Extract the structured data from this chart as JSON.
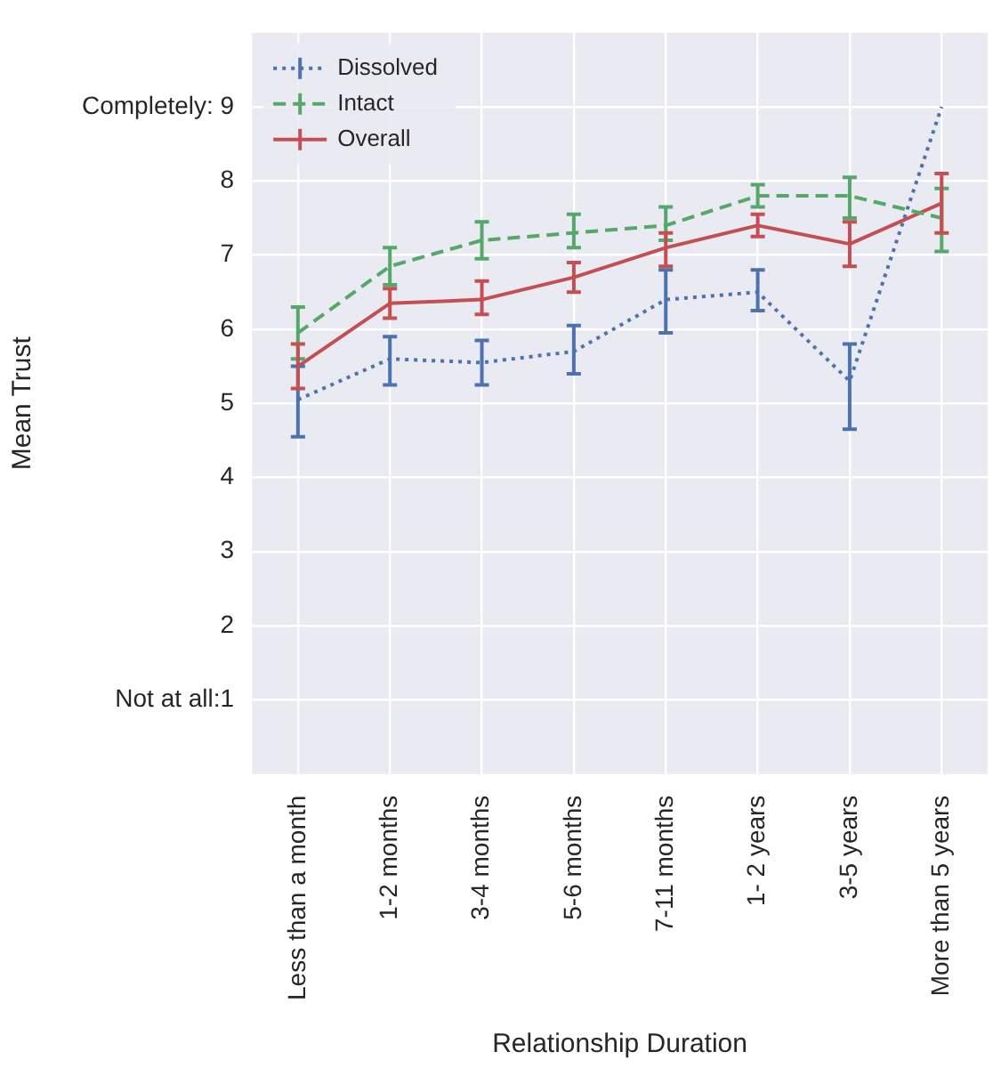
{
  "chart_data": {
    "type": "line",
    "xlabel": "Relationship Duration",
    "ylabel": "Mean Trust",
    "categories": [
      "Less than a month",
      "1-2 months",
      "3-4 months",
      "5-6 months",
      "7-11 months",
      "1- 2 years",
      "3-5 years",
      "More than 5 years"
    ],
    "series": [
      {
        "name": "Dissolved",
        "color": "#4c72b0",
        "line_style": "dotted",
        "values": [
          5.05,
          5.6,
          5.55,
          5.7,
          6.4,
          6.5,
          5.3,
          9.0
        ],
        "errors": [
          [
            4.55,
            5.5
          ],
          [
            5.25,
            5.9
          ],
          [
            5.25,
            5.85
          ],
          [
            5.4,
            6.05
          ],
          [
            5.95,
            6.8
          ],
          [
            6.25,
            6.8
          ],
          [
            4.65,
            5.8
          ],
          null
        ]
      },
      {
        "name": "Intact",
        "color": "#55a868",
        "line_style": "dashed",
        "values": [
          5.95,
          6.85,
          7.2,
          7.3,
          7.4,
          7.8,
          7.8,
          7.5
        ],
        "errors": [
          [
            5.6,
            6.3
          ],
          [
            6.6,
            7.1
          ],
          [
            6.95,
            7.45
          ],
          [
            7.1,
            7.55
          ],
          [
            7.2,
            7.65
          ],
          [
            7.65,
            7.95
          ],
          [
            7.5,
            8.05
          ],
          [
            7.05,
            7.9
          ]
        ]
      },
      {
        "name": "Overall",
        "color": "#c44e52",
        "line_style": "solid",
        "values": [
          5.5,
          6.35,
          6.4,
          6.7,
          7.1,
          7.4,
          7.15,
          7.7
        ],
        "errors": [
          [
            5.2,
            5.8
          ],
          [
            6.15,
            6.55
          ],
          [
            6.2,
            6.65
          ],
          [
            6.5,
            6.9
          ],
          [
            6.85,
            7.3
          ],
          [
            7.25,
            7.55
          ],
          [
            6.85,
            7.45
          ],
          [
            7.3,
            8.1
          ]
        ]
      }
    ],
    "ylim": [
      0,
      10
    ],
    "yticks": [
      {
        "value": 1,
        "label": "Not at all:1"
      },
      2,
      3,
      4,
      5,
      6,
      7,
      8,
      {
        "value": 9,
        "label": "Completely: 9"
      }
    ],
    "grid": true,
    "legend": "top left",
    "marker": "none"
  }
}
